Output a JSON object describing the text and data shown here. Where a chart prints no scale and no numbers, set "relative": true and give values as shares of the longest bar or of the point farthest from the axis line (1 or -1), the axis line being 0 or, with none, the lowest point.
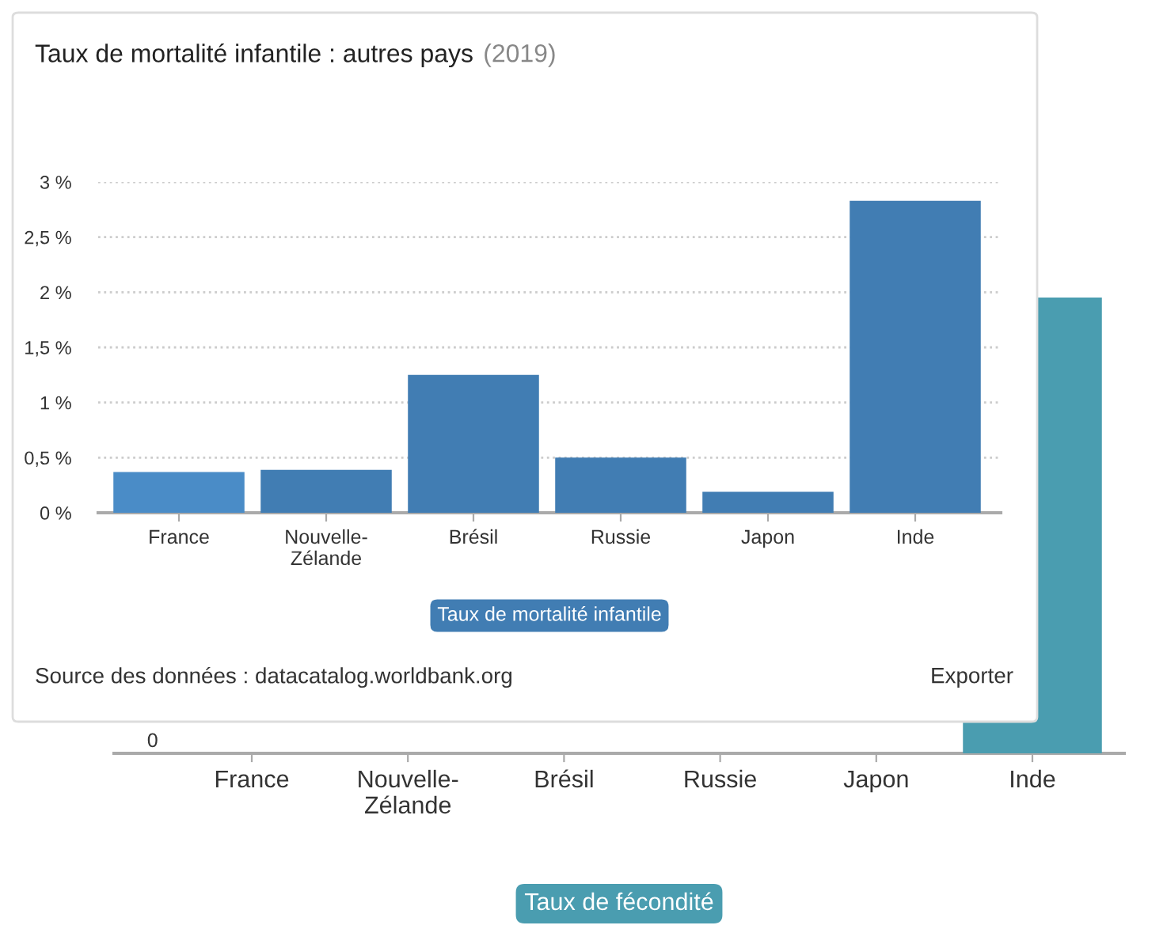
{
  "chart_data": [
    {
      "type": "bar",
      "title": "Taux de mortalité infantile : autres pays",
      "subtitle": "(2019)",
      "categories": [
        "France",
        "Nouvelle-Zélande",
        "Brésil",
        "Russie",
        "Japon",
        "Inde"
      ],
      "series": [
        {
          "name": "Taux de mortalité infantile",
          "color": "#417db3",
          "colors": [
            "#4a8cc7",
            "#417db3",
            "#417db3",
            "#417db3",
            "#417db3",
            "#417db3"
          ],
          "values": [
            0.37,
            0.39,
            1.25,
            0.5,
            0.19,
            2.83
          ]
        }
      ],
      "ylim": [
        0,
        3
      ],
      "yticks": [
        {
          "value": 0,
          "label": "0 %"
        },
        {
          "value": 0.5,
          "label": "0,5 %"
        },
        {
          "value": 1,
          "label": "1 %"
        },
        {
          "value": 1.5,
          "label": "1,5 %"
        },
        {
          "value": 2,
          "label": "2 %"
        },
        {
          "value": 2.5,
          "label": "2,5 %"
        },
        {
          "value": 3,
          "label": "3 %"
        }
      ],
      "grid": "y",
      "legend": "bottom",
      "annotations": [
        "Source des données : datacatalog.worldbank.org",
        "Exporter"
      ]
    },
    {
      "type": "bar",
      "relative": true,
      "categories": [
        "France",
        "Nouvelle-Zélande",
        "Brésil",
        "Russie",
        "Japon",
        "Inde"
      ],
      "series": [
        {
          "name": "Taux de fécondité",
          "color": "#4a9db0",
          "colors": [
            "#52aec4",
            "#4a9db0",
            "#4a9db0",
            "#4a9db0",
            "#4a9db0",
            "#4a9db0"
          ],
          "values": [
            null,
            null,
            null,
            null,
            null,
            1
          ]
        }
      ],
      "legend": "bottom",
      "annotations": [
        "0"
      ]
    }
  ]
}
